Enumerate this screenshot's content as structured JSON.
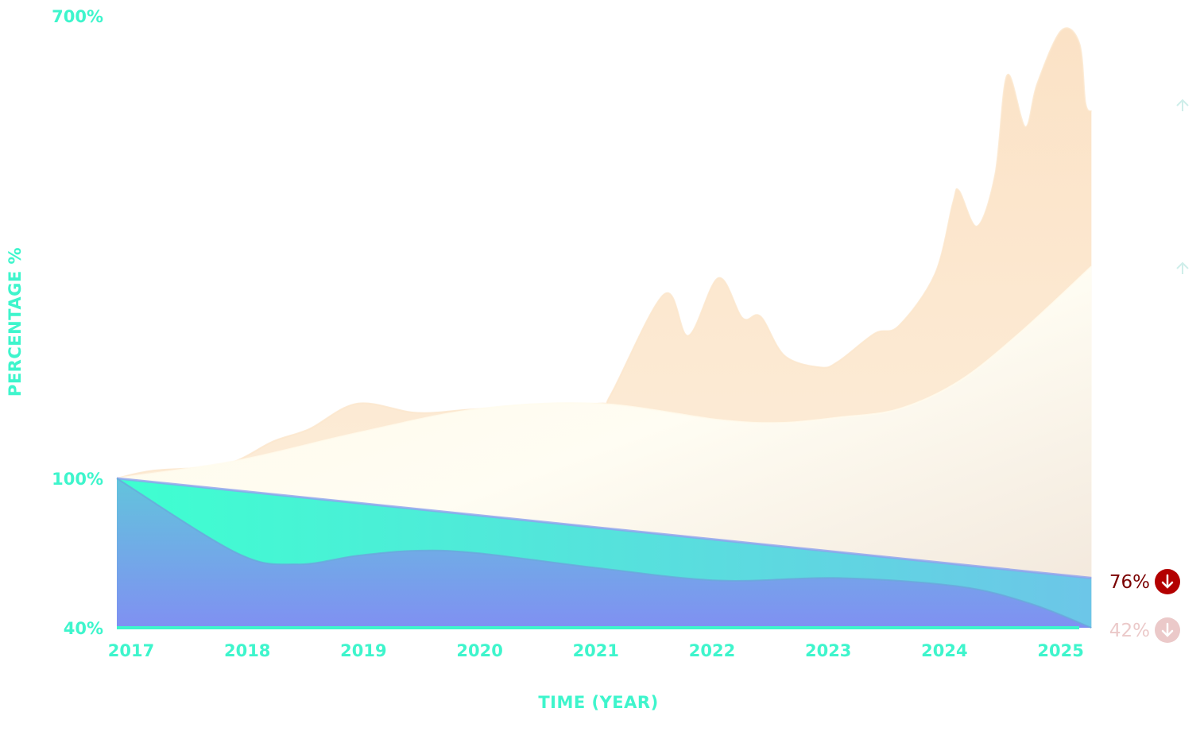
{
  "chart_data": {
    "type": "area",
    "xlabel": "TIME (YEAR)",
    "ylabel": "PERCENTAGE %",
    "x_ticks": [
      "2017",
      "2018",
      "2019",
      "2020",
      "2021",
      "2022",
      "2023",
      "2024",
      "2025"
    ],
    "y_ticks": [
      "700%",
      "100%",
      "40%"
    ],
    "xlim": [
      2017,
      2025.1
    ],
    "ylim": [
      40,
      700
    ],
    "grid": false,
    "colors": {
      "axis": "#3ef5cc",
      "orange": "#fbe3c8",
      "cream": "#fdf5dc",
      "teal": "#40ffd0",
      "blue": "#7f8ff0",
      "down_strong": "#b30000",
      "down_faint": "#ebc9c9",
      "up_faint": "#cfeeea"
    },
    "series": [
      {
        "key": "orange",
        "points": [
          [
            2017,
            100
          ],
          [
            2017.3,
            110
          ],
          [
            2017.9,
            118
          ],
          [
            2018.3,
            148
          ],
          [
            2018.6,
            164
          ],
          [
            2019,
            197
          ],
          [
            2019.5,
            185
          ],
          [
            2020,
            190
          ],
          [
            2021,
            197
          ],
          [
            2021.1,
            207
          ],
          [
            2021.55,
            339
          ],
          [
            2021.75,
            285
          ],
          [
            2022,
            360
          ],
          [
            2022.2,
            308
          ],
          [
            2022.35,
            310
          ],
          [
            2022.55,
            259
          ],
          [
            2022.85,
            244
          ],
          [
            2023,
            252
          ],
          [
            2023.3,
            288
          ],
          [
            2023.5,
            298
          ],
          [
            2023.8,
            365
          ],
          [
            2023.95,
            458
          ],
          [
            2024,
            473
          ],
          [
            2024.15,
            427
          ],
          [
            2024.3,
            494
          ],
          [
            2024.4,
            623
          ],
          [
            2024.55,
            556
          ],
          [
            2024.65,
            612
          ],
          [
            2024.85,
            681
          ],
          [
            2025,
            664
          ],
          [
            2025.05,
            587
          ],
          [
            2025.1,
            576
          ]
        ]
      },
      {
        "key": "cream",
        "points": [
          [
            2017,
            100
          ],
          [
            2018,
            123
          ],
          [
            2019,
            159
          ],
          [
            2020,
            190
          ],
          [
            2021,
            197
          ],
          [
            2022,
            176
          ],
          [
            2022.5,
            172
          ],
          [
            2023,
            179
          ],
          [
            2023.5,
            190
          ],
          [
            2024,
            226
          ],
          [
            2024.5,
            288
          ],
          [
            2025.1,
            375
          ]
        ]
      },
      {
        "key": "teal",
        "points": [
          [
            2017,
            100
          ],
          [
            2025.1,
            60
          ]
        ]
      },
      {
        "key": "blue",
        "points": [
          [
            2017,
            100
          ],
          [
            2018,
            70
          ],
          [
            2018.5,
            65.5
          ],
          [
            2019,
            69
          ],
          [
            2019.5,
            71
          ],
          [
            2020,
            70
          ],
          [
            2021,
            64
          ],
          [
            2022,
            59
          ],
          [
            2023,
            60
          ],
          [
            2024,
            56.6
          ],
          [
            2024.6,
            49.6
          ],
          [
            2025.1,
            40
          ]
        ]
      }
    ],
    "annotations": [
      {
        "text": "76%",
        "icon": "arrow-down-circle-icon",
        "style": "strong"
      },
      {
        "text": "42%",
        "icon": "arrow-down-circle-icon",
        "style": "faint"
      }
    ],
    "up_markers": [
      {
        "icon": "arrow-up-icon",
        "value": 580
      },
      {
        "icon": "arrow-up-icon",
        "value": 372
      }
    ]
  }
}
